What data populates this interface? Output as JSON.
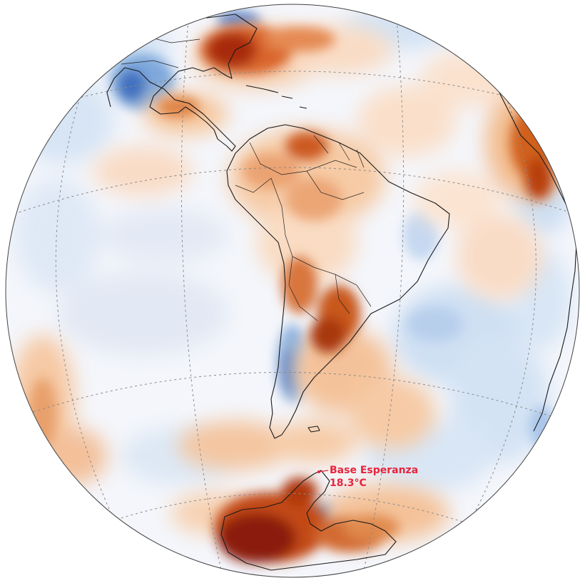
{
  "map": {
    "annotation": {
      "name": "Base Esperanza",
      "value": "18.3°C"
    },
    "colors": {
      "ocean_base": "#f4f6fb",
      "warm_light": "#f6c79f",
      "warm_mid": "#e8894a",
      "warm_strong": "#c24a16",
      "warm_extreme": "#8b1a0a",
      "cool_light": "#cfe0f3",
      "cool_mid": "#7fa9dc",
      "cool_strong": "#3f6fc0",
      "label": "#e8243c"
    }
  }
}
